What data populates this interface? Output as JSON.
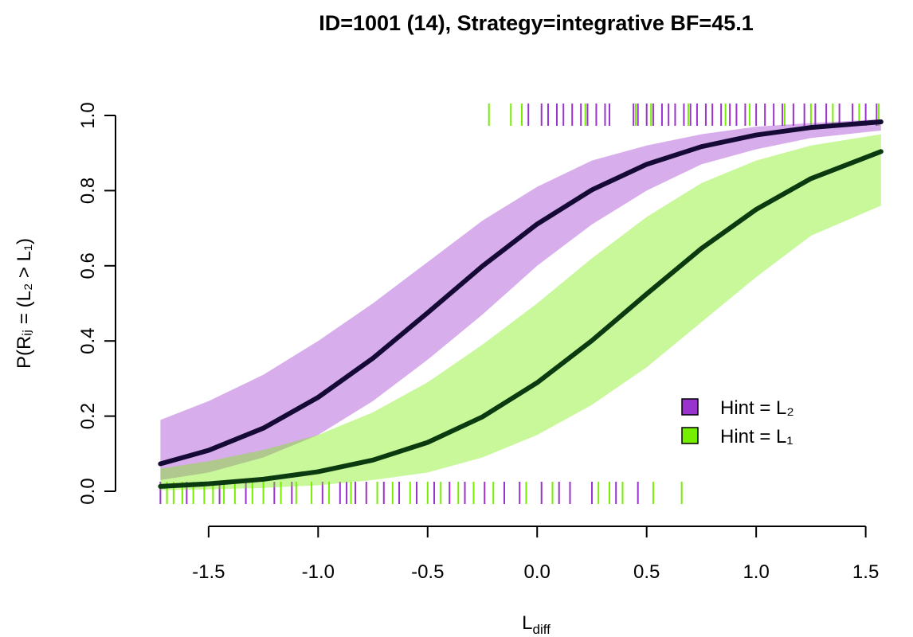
{
  "chart_data": {
    "type": "line",
    "title": "ID=1001 (14), Strategy=integrative BF=45.1",
    "xlabel": {
      "main": "L",
      "sub": "diff"
    },
    "ylabel": "P(Rᵢⱼ = (L₂ > L₁)",
    "x": [
      -1.72,
      -1.5,
      -1.25,
      -1.0,
      -0.75,
      -0.5,
      -0.25,
      0,
      0.25,
      0.5,
      0.75,
      1.0,
      1.25,
      1.57
    ],
    "series": [
      {
        "name": "Hint = L₂",
        "color": "#9a32cd",
        "line_color": "#150a35",
        "values": [
          0.073,
          0.109,
          0.168,
          0.25,
          0.354,
          0.475,
          0.599,
          0.711,
          0.802,
          0.87,
          0.917,
          0.948,
          0.968,
          0.983
        ],
        "lower": [
          0.03,
          0.05,
          0.09,
          0.15,
          0.24,
          0.35,
          0.47,
          0.6,
          0.71,
          0.8,
          0.87,
          0.91,
          0.94,
          0.96
        ],
        "upper": [
          0.19,
          0.24,
          0.31,
          0.4,
          0.5,
          0.61,
          0.72,
          0.81,
          0.88,
          0.92,
          0.95,
          0.97,
          0.98,
          0.99
        ],
        "rug_top": [
          -0.04,
          0.02,
          0.05,
          0.09,
          0.12,
          0.16,
          0.2,
          0.23,
          0.27,
          0.31,
          0.33,
          0.44,
          0.46,
          0.5,
          0.53,
          0.57,
          0.6,
          0.63,
          0.67,
          0.7,
          0.73,
          0.77,
          0.8,
          0.84,
          0.88,
          0.91,
          0.95,
          1.0,
          1.04,
          1.08,
          1.12,
          1.17,
          1.22,
          1.27,
          1.32,
          1.38,
          1.44,
          1.5,
          1.55
        ],
        "rug_bottom": [
          -1.72,
          -1.6,
          -1.45,
          -1.33,
          -1.2,
          -1.12,
          -0.98,
          -0.9,
          -0.87,
          -0.83,
          -0.78,
          -0.7,
          -0.63,
          -0.55,
          -0.47,
          -0.4,
          -0.33,
          -0.24,
          -0.15,
          -0.08,
          0.02,
          0.1,
          0.15,
          0.25,
          0.36,
          0.46
        ]
      },
      {
        "name": "Hint = L₁",
        "color": "#76ee00",
        "line_color": "#0b3a10",
        "values": [
          0.013,
          0.02,
          0.032,
          0.052,
          0.083,
          0.13,
          0.198,
          0.289,
          0.401,
          0.525,
          0.646,
          0.75,
          0.832,
          0.904
        ],
        "lower": [
          0.003,
          0.005,
          0.009,
          0.016,
          0.03,
          0.05,
          0.09,
          0.15,
          0.23,
          0.33,
          0.45,
          0.57,
          0.68,
          0.76
        ],
        "upper": [
          0.06,
          0.08,
          0.11,
          0.15,
          0.21,
          0.29,
          0.39,
          0.5,
          0.62,
          0.73,
          0.82,
          0.88,
          0.92,
          0.95
        ],
        "rug_top": [
          -0.22,
          -0.12,
          -0.07,
          0.22,
          0.45,
          0.52,
          0.69,
          0.86,
          0.97,
          1.13,
          1.25,
          1.35,
          1.47,
          1.56
        ],
        "rug_bottom": [
          -1.69,
          -1.66,
          -1.62,
          -1.57,
          -1.52,
          -1.48,
          -1.43,
          -1.38,
          -1.3,
          -1.25,
          -1.17,
          -1.1,
          -1.03,
          -0.95,
          -0.85,
          -0.73,
          -0.66,
          -0.58,
          -0.5,
          -0.44,
          -0.36,
          -0.29,
          -0.2,
          -0.05,
          0.07,
          0.28,
          0.33,
          0.39,
          0.53,
          0.66
        ]
      }
    ],
    "xlim": [
      -1.925,
      1.716
    ],
    "ylim": [
      0,
      1
    ],
    "xticks": [
      -1.5,
      {
        "value": -1,
        "label": "-1.0"
      },
      -0.5,
      {
        "value": 0,
        "label": "0.0"
      },
      0.5,
      {
        "value": 1,
        "label": "1.0"
      },
      1.5
    ],
    "yticks": [
      {
        "value": 0,
        "label": "0.0"
      },
      0.2,
      0.4,
      0.6,
      0.8,
      {
        "value": 1,
        "label": "1.0"
      }
    ],
    "legend": "right"
  }
}
